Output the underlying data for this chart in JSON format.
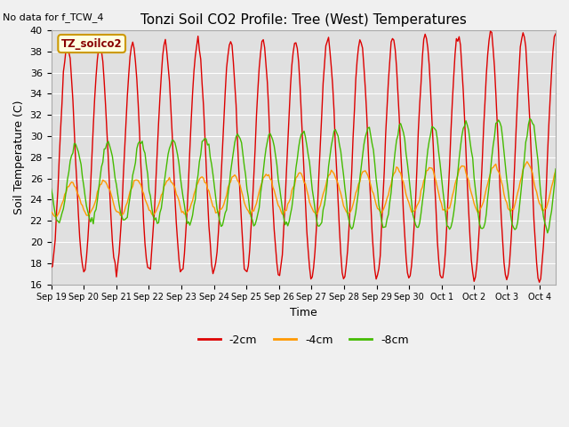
{
  "title": "Tonzi Soil CO2 Profile: Tree (West) Temperatures",
  "subtitle": "No data for f_TCW_4",
  "xlabel": "Time",
  "ylabel": "Soil Temperature (C)",
  "ylim": [
    16,
    40
  ],
  "yticks": [
    16,
    18,
    20,
    22,
    24,
    26,
    28,
    30,
    32,
    34,
    36,
    38,
    40
  ],
  "colors": {
    "-2cm": "#dd0000",
    "-4cm": "#ff9900",
    "-8cm": "#44bb00"
  },
  "legend_label": "TZ_soilco2",
  "fig_facecolor": "#f0f0f0",
  "ax_facecolor": "#e0e0e0",
  "grid_color": "#ffffff",
  "n_days": 15.5
}
